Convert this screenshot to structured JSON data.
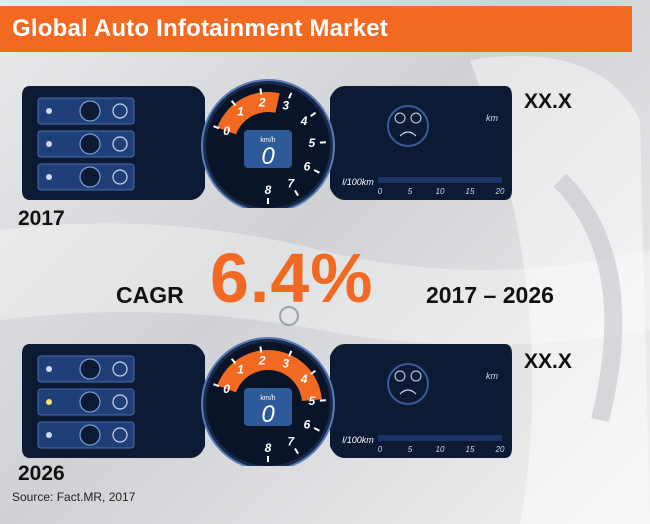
{
  "title": "Global Auto Infotainment Market",
  "panels": [
    {
      "year": "2017",
      "value": "XX.X",
      "gauge_fill": 0.33,
      "speed_readout": "0",
      "speed_unit": "km/h",
      "scale_labels": [
        "0",
        "1",
        "2",
        "3",
        "4",
        "5",
        "6",
        "7",
        "8"
      ],
      "consumption_unit": "l/100km",
      "consumption_ticks": [
        "0",
        "5",
        "10",
        "15",
        "20"
      ],
      "distance_unit": "km"
    },
    {
      "year": "2026",
      "value": "XX.X",
      "gauge_fill": 0.62,
      "speed_readout": "0",
      "speed_unit": "km/h",
      "scale_labels": [
        "0",
        "1",
        "2",
        "3",
        "4",
        "5",
        "6",
        "7",
        "8"
      ],
      "consumption_unit": "l/100km",
      "consumption_ticks": [
        "0",
        "5",
        "10",
        "15",
        "20"
      ],
      "distance_unit": "km"
    }
  ],
  "cagr": {
    "label": "CAGR",
    "value": "6.4%",
    "period": "2017 – 2026"
  },
  "source": "Source: Fact.MR, 2017",
  "colors": {
    "accent": "#f26a21",
    "panel_dark": "#0d1a33",
    "panel_blue": "#1f3f78",
    "readout": "#8fb7e8"
  },
  "icons": [
    "power-icon",
    "speedometer-icon",
    "settings-icon",
    "car-icon",
    "fuel-icon",
    "wheel-icon"
  ]
}
